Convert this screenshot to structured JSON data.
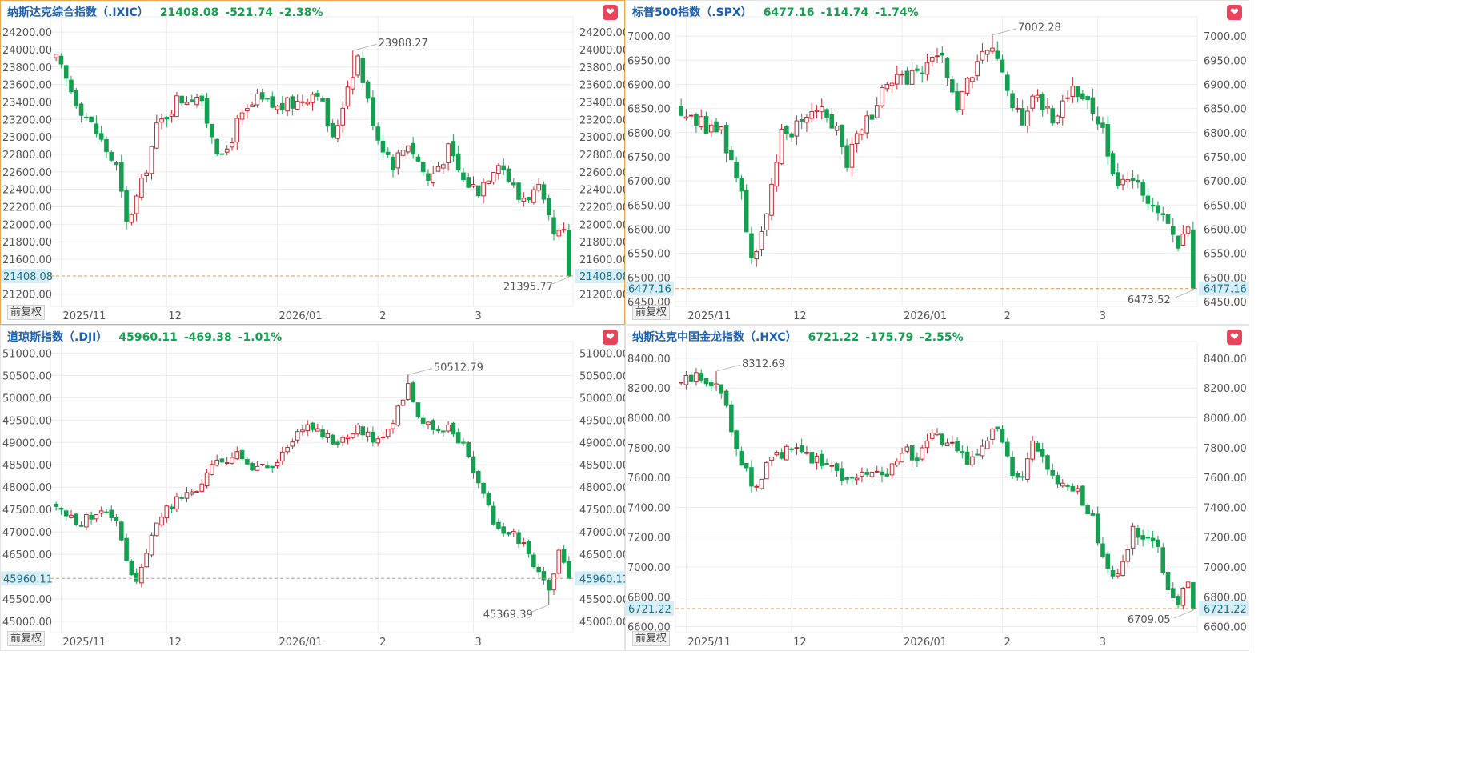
{
  "colors": {
    "up": "#c0282d",
    "down": "#14a050",
    "grid": "#ececec",
    "current_line": "#e09a5a",
    "current_bg": "#d8eef6",
    "title": "#1a5fb4",
    "change": "#14a050"
  },
  "common": {
    "adj_label": "前复权",
    "fav_icon": "heart-icon"
  },
  "chart_data": [
    {
      "type": "candlestick",
      "header": {
        "name": "纳斯达克综合指数（.IXIC）",
        "price": "21408.08",
        "change": "-521.74",
        "pct": "-2.38%"
      },
      "y_ticks": [
        "24200.00",
        "24000.00",
        "23800.00",
        "23600.00",
        "23400.00",
        "23200.00",
        "23000.00",
        "22800.00",
        "22600.00",
        "22400.00",
        "22200.00",
        "22000.00",
        "21800.00",
        "21600.00",
        "21200.00"
      ],
      "ylim": [
        21060,
        24320
      ],
      "x_ticks": [
        {
          "label": "2025/11",
          "i": 1
        },
        {
          "label": "12",
          "i": 22
        },
        {
          "label": "2026/01",
          "i": 44
        },
        {
          "label": "2",
          "i": 64
        },
        {
          "label": "3",
          "i": 83
        }
      ],
      "current": {
        "value": 21408.08,
        "label": "21408.08"
      },
      "high_marker": {
        "value": 23988.27,
        "label": "23988.27",
        "i": 59
      },
      "low_marker": {
        "value": 21395.77,
        "label": "21395.77",
        "i": 102
      },
      "start": 23880,
      "trend": [
        [
          0,
          23880
        ],
        [
          4,
          23420
        ],
        [
          8,
          23050
        ],
        [
          12,
          22650
        ],
        [
          14,
          22000
        ],
        [
          17,
          22450
        ],
        [
          20,
          23100
        ],
        [
          24,
          23420
        ],
        [
          28,
          23480
        ],
        [
          31,
          23050
        ],
        [
          33,
          22720
        ],
        [
          36,
          23150
        ],
        [
          40,
          23420
        ],
        [
          44,
          23330
        ],
        [
          48,
          23400
        ],
        [
          52,
          23550
        ],
        [
          55,
          22950
        ],
        [
          58,
          23600
        ],
        [
          60,
          23920
        ],
        [
          62,
          23400
        ],
        [
          64,
          23000
        ],
        [
          67,
          22700
        ],
        [
          70,
          22950
        ],
        [
          74,
          22500
        ],
        [
          78,
          22850
        ],
        [
          81,
          22500
        ],
        [
          84,
          22400
        ],
        [
          88,
          22750
        ],
        [
          92,
          22300
        ],
        [
          96,
          22380
        ],
        [
          99,
          21850
        ],
        [
          101,
          21880
        ],
        [
          102,
          21408.08
        ]
      ],
      "vol": 0.0045
    },
    {
      "type": "candlestick",
      "header": {
        "name": "标普500指数（.SPX）",
        "price": "6477.16",
        "change": "-114.74",
        "pct": "-1.74%"
      },
      "y_ticks": [
        "7000.00",
        "6950.00",
        "6900.00",
        "6850.00",
        "6800.00",
        "6750.00",
        "6700.00",
        "6650.00",
        "6600.00",
        "6550.00",
        "6500.00",
        "6450.00"
      ],
      "ylim": [
        6440,
        7030
      ],
      "x_ticks": [
        {
          "label": "2025/11",
          "i": 1
        },
        {
          "label": "12",
          "i": 22
        },
        {
          "label": "2026/01",
          "i": 44
        },
        {
          "label": "2",
          "i": 64
        },
        {
          "label": "3",
          "i": 83
        }
      ],
      "current": {
        "value": 6477.16,
        "label": "6477.16"
      },
      "high_marker": {
        "value": 7002.28,
        "label": "7002.28",
        "i": 62
      },
      "low_marker": {
        "value": 6473.52,
        "label": "6473.52",
        "i": 102
      },
      "start": 6850,
      "trend": [
        [
          0,
          6850
        ],
        [
          4,
          6820
        ],
        [
          8,
          6800
        ],
        [
          12,
          6680
        ],
        [
          14,
          6540
        ],
        [
          17,
          6620
        ],
        [
          20,
          6790
        ],
        [
          24,
          6830
        ],
        [
          28,
          6860
        ],
        [
          31,
          6810
        ],
        [
          33,
          6740
        ],
        [
          36,
          6810
        ],
        [
          40,
          6880
        ],
        [
          44,
          6910
        ],
        [
          48,
          6930
        ],
        [
          52,
          6950
        ],
        [
          55,
          6850
        ],
        [
          58,
          6920
        ],
        [
          61,
          6980
        ],
        [
          63,
          6950
        ],
        [
          65,
          6880
        ],
        [
          68,
          6830
        ],
        [
          70,
          6880
        ],
        [
          74,
          6830
        ],
        [
          78,
          6900
        ],
        [
          81,
          6860
        ],
        [
          84,
          6800
        ],
        [
          87,
          6700
        ],
        [
          90,
          6690
        ],
        [
          93,
          6670
        ],
        [
          96,
          6620
        ],
        [
          99,
          6560
        ],
        [
          101,
          6590
        ],
        [
          102,
          6477.16
        ]
      ],
      "vol": 0.0035
    },
    {
      "type": "candlestick",
      "header": {
        "name": "道琼斯指数（.DJI）",
        "price": "45960.11",
        "change": "-469.38",
        "pct": "-1.01%"
      },
      "y_ticks": [
        "51000.00",
        "50500.00",
        "50000.00",
        "49500.00",
        "49000.00",
        "48500.00",
        "48000.00",
        "47500.00",
        "47000.00",
        "46500.00",
        "45500.00",
        "45000.00"
      ],
      "ylim": [
        44750,
        51150
      ],
      "x_ticks": [
        {
          "label": "2025/11",
          "i": 1
        },
        {
          "label": "12",
          "i": 22
        },
        {
          "label": "2026/01",
          "i": 44
        },
        {
          "label": "2",
          "i": 64
        },
        {
          "label": "3",
          "i": 83
        }
      ],
      "current": {
        "value": 45960.11,
        "label": "45960.11"
      },
      "high_marker": {
        "value": 50512.79,
        "label": "50512.79",
        "i": 70
      },
      "low_marker": {
        "value": 45369.39,
        "label": "45369.39",
        "i": 98
      },
      "start": 47600,
      "trend": [
        [
          0,
          47600
        ],
        [
          4,
          47150
        ],
        [
          8,
          47450
        ],
        [
          12,
          47300
        ],
        [
          14,
          46400
        ],
        [
          16,
          45900
        ],
        [
          18,
          46450
        ],
        [
          20,
          47300
        ],
        [
          24,
          47700
        ],
        [
          28,
          47950
        ],
        [
          32,
          48550
        ],
        [
          36,
          48700
        ],
        [
          40,
          48400
        ],
        [
          44,
          48450
        ],
        [
          48,
          49350
        ],
        [
          52,
          49300
        ],
        [
          56,
          49000
        ],
        [
          60,
          49300
        ],
        [
          63,
          49100
        ],
        [
          66,
          49200
        ],
        [
          68,
          49800
        ],
        [
          70,
          50300
        ],
        [
          72,
          49650
        ],
        [
          75,
          49200
        ],
        [
          78,
          49300
        ],
        [
          81,
          48900
        ],
        [
          84,
          48100
        ],
        [
          87,
          47200
        ],
        [
          90,
          47000
        ],
        [
          93,
          46700
        ],
        [
          96,
          46100
        ],
        [
          98,
          45700
        ],
        [
          100,
          46500
        ],
        [
          102,
          45960.11
        ]
      ],
      "vol": 0.003
    },
    {
      "type": "candlestick",
      "header": {
        "name": "纳斯达克中国金龙指数（.HXC）",
        "price": "6721.22",
        "change": "-175.79",
        "pct": "-2.55%"
      },
      "y_ticks": [
        "8400.00",
        "8200.00",
        "8000.00",
        "7800.00",
        "7600.00",
        "7400.00",
        "7200.00",
        "7000.00",
        "6800.00",
        "6600.00"
      ],
      "ylim": [
        6560,
        8480
      ],
      "x_ticks": [
        {
          "label": "2025/11",
          "i": 1
        },
        {
          "label": "12",
          "i": 22
        },
        {
          "label": "2026/01",
          "i": 44
        },
        {
          "label": "2",
          "i": 64
        },
        {
          "label": "3",
          "i": 83
        }
      ],
      "current": {
        "value": 6721.22,
        "label": "6721.22"
      },
      "high_marker": {
        "value": 8312.69,
        "label": "8312.69",
        "i": 7
      },
      "low_marker": {
        "value": 6709.05,
        "label": "6709.05",
        "i": 102
      },
      "start": 8230,
      "trend": [
        [
          0,
          8230
        ],
        [
          3,
          8280
        ],
        [
          6,
          8250
        ],
        [
          9,
          8100
        ],
        [
          11,
          7800
        ],
        [
          13,
          7650
        ],
        [
          15,
          7500
        ],
        [
          17,
          7700
        ],
        [
          20,
          7760
        ],
        [
          24,
          7780
        ],
        [
          28,
          7700
        ],
        [
          31,
          7660
        ],
        [
          33,
          7580
        ],
        [
          36,
          7640
        ],
        [
          40,
          7600
        ],
        [
          44,
          7800
        ],
        [
          47,
          7720
        ],
        [
          50,
          7880
        ],
        [
          54,
          7800
        ],
        [
          57,
          7700
        ],
        [
          60,
          7850
        ],
        [
          63,
          7920
        ],
        [
          66,
          7600
        ],
        [
          68,
          7560
        ],
        [
          70,
          7820
        ],
        [
          72,
          7700
        ],
        [
          75,
          7550
        ],
        [
          78,
          7520
        ],
        [
          81,
          7400
        ],
        [
          84,
          7100
        ],
        [
          86,
          6900
        ],
        [
          88,
          7000
        ],
        [
          90,
          7250
        ],
        [
          93,
          7200
        ],
        [
          95,
          7100
        ],
        [
          97,
          6850
        ],
        [
          99,
          6780
        ],
        [
          101,
          6860
        ],
        [
          102,
          6721.22
        ]
      ],
      "vol": 0.007
    }
  ]
}
